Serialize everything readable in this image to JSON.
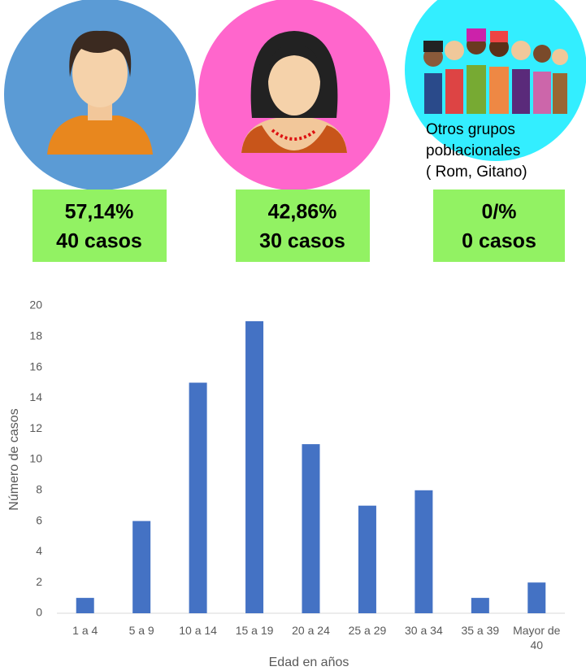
{
  "cards": [
    {
      "percent": "57,14%",
      "cases": "40 casos"
    },
    {
      "percent": "42,86%",
      "cases": "30 casos"
    },
    {
      "caption": [
        "Otros grupos",
        "poblacionales",
        "( Rom, Gitano)"
      ],
      "percent": "0/%",
      "cases": "0 casos"
    }
  ],
  "chart_data": {
    "type": "bar",
    "categories": [
      "1 a 4",
      "5 a 9",
      "10 a 14",
      "15 a 19",
      "20 a 24",
      "25 a 29",
      "30 a 34",
      "35 a 39",
      "Mayor de 40"
    ],
    "values": [
      1,
      6,
      15,
      19,
      11,
      7,
      8,
      1,
      2
    ],
    "color": "#4472c4",
    "ylim": [
      0,
      20
    ],
    "yticks": [
      0,
      2,
      4,
      6,
      8,
      10,
      12,
      14,
      16,
      18,
      20
    ],
    "grid": false,
    "y_label": "Número de casos",
    "x_label": "Edad en años"
  }
}
